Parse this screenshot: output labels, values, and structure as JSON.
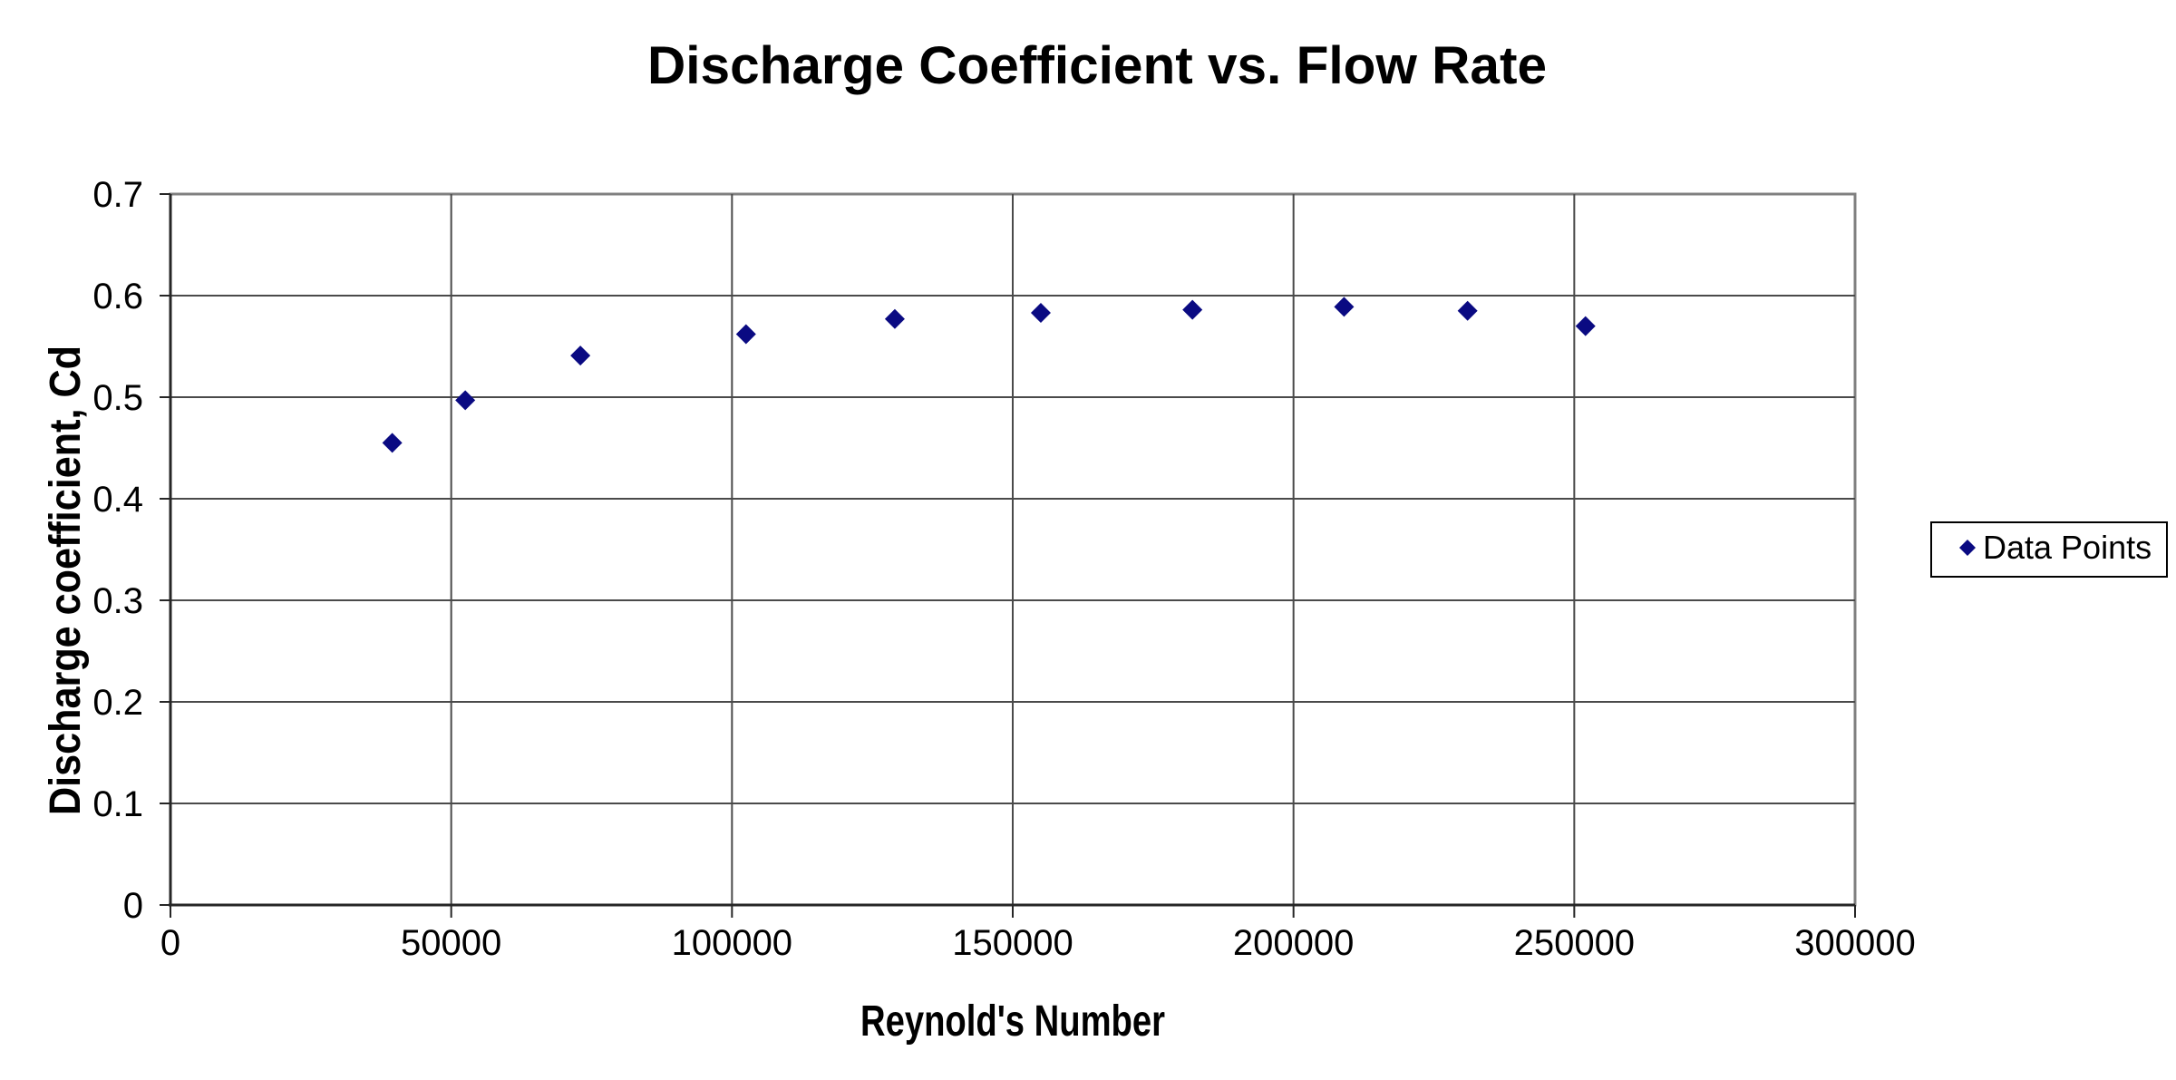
{
  "chart_data": {
    "type": "scatter",
    "title": "Discharge Coefficient vs. Flow Rate",
    "xlabel": "Reynold's Number",
    "ylabel": "Discharge coefficient, Cd",
    "xlim": [
      0,
      300000
    ],
    "ylim": [
      0,
      0.7
    ],
    "x_ticks": [
      0,
      50000,
      100000,
      150000,
      200000,
      250000,
      300000
    ],
    "y_ticks": [
      0,
      0.1,
      0.2,
      0.3,
      0.4,
      0.5,
      0.6,
      0.7
    ],
    "grid": true,
    "legend_position": "right-middle",
    "series": [
      {
        "name": "Data Points",
        "marker": "diamond",
        "color": "#0a0a82",
        "points": [
          {
            "x": 39500,
            "y": 0.455
          },
          {
            "x": 52500,
            "y": 0.497
          },
          {
            "x": 73000,
            "y": 0.541
          },
          {
            "x": 102500,
            "y": 0.562
          },
          {
            "x": 129000,
            "y": 0.577
          },
          {
            "x": 155000,
            "y": 0.583
          },
          {
            "x": 182000,
            "y": 0.586
          },
          {
            "x": 209000,
            "y": 0.589
          },
          {
            "x": 231000,
            "y": 0.585
          },
          {
            "x": 252000,
            "y": 0.57
          }
        ]
      }
    ],
    "style_colors": {
      "plot_border": "#808080",
      "gridline": "#4a4a4a",
      "axis": "#262626",
      "background": "#ffffff"
    }
  },
  "legend": {
    "label": "Data Points"
  }
}
